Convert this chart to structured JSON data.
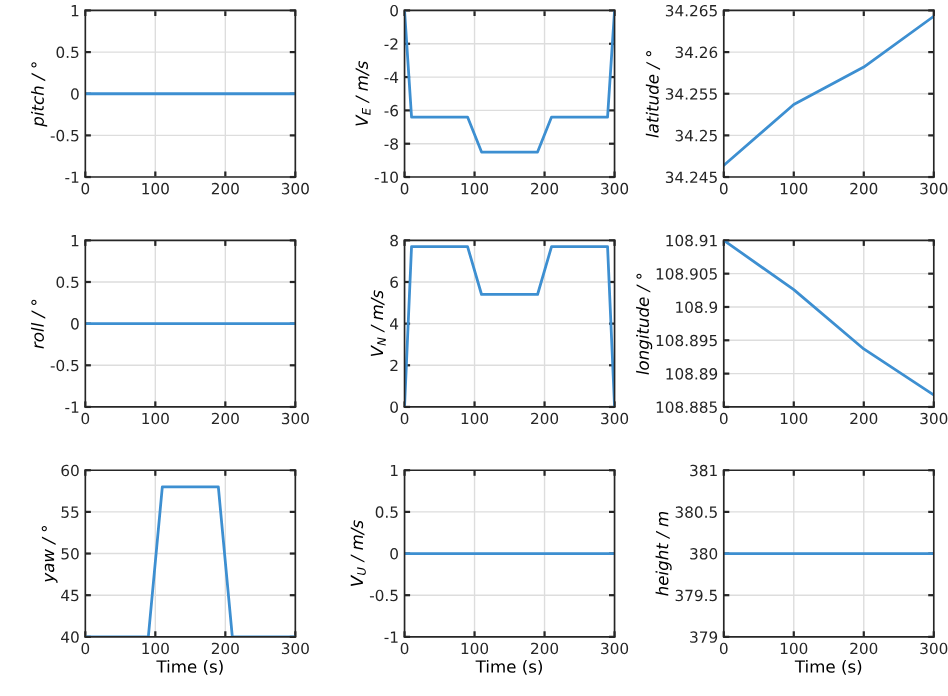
{
  "chart_data": [
    {
      "type": "line",
      "ylabel": "pitch / °",
      "x": [
        0,
        300
      ],
      "series": [
        {
          "color": "#3d8fd1",
          "values": [
            0,
            0
          ]
        }
      ],
      "xlim": [
        0,
        300
      ],
      "xticks": [
        0,
        100,
        200,
        300
      ],
      "ylim": [
        -1,
        1
      ],
      "yticks": [
        -1,
        -0.5,
        0,
        0.5,
        1
      ],
      "grid": true
    },
    {
      "type": "line",
      "ylabel": "V$_{E}$ / m/s",
      "x": [
        0,
        10,
        90,
        110,
        190,
        210,
        290,
        300
      ],
      "series": [
        {
          "color": "#3d8fd1",
          "values": [
            0,
            -6.4,
            -6.4,
            -8.5,
            -8.5,
            -6.4,
            -6.4,
            0
          ]
        }
      ],
      "xlim": [
        0,
        300
      ],
      "xticks": [
        0,
        100,
        200,
        300
      ],
      "ylim": [
        -10,
        0
      ],
      "yticks": [
        -10,
        -8,
        -6,
        -4,
        -2,
        0
      ],
      "grid": true
    },
    {
      "type": "line",
      "ylabel": "latitude / °",
      "x": [
        0,
        100,
        200,
        300
      ],
      "series": [
        {
          "color": "#3d8fd1",
          "values": [
            34.2464,
            34.2537,
            34.2582,
            34.2643
          ]
        }
      ],
      "xlim": [
        0,
        300
      ],
      "xticks": [
        0,
        100,
        200,
        300
      ],
      "ylim": [
        34.245,
        34.265
      ],
      "yticks": [
        34.245,
        34.25,
        34.255,
        34.26,
        34.265
      ],
      "grid": true
    },
    {
      "type": "line",
      "ylabel": "roll / °",
      "x": [
        0,
        300
      ],
      "series": [
        {
          "color": "#3d8fd1",
          "values": [
            0,
            0
          ]
        }
      ],
      "xlim": [
        0,
        300
      ],
      "xticks": [
        0,
        100,
        200,
        300
      ],
      "ylim": [
        -1,
        1
      ],
      "yticks": [
        -1,
        -0.5,
        0,
        0.5,
        1
      ],
      "grid": true
    },
    {
      "type": "line",
      "ylabel": "V$_{N}$ / m/s",
      "x": [
        0,
        10,
        90,
        110,
        190,
        210,
        290,
        300
      ],
      "series": [
        {
          "color": "#3d8fd1",
          "values": [
            0,
            7.7,
            7.7,
            5.4,
            5.4,
            7.7,
            7.7,
            0
          ]
        }
      ],
      "xlim": [
        0,
        300
      ],
      "xticks": [
        0,
        100,
        200,
        300
      ],
      "ylim": [
        0,
        8
      ],
      "yticks": [
        0,
        2,
        4,
        6,
        8
      ],
      "grid": true
    },
    {
      "type": "line",
      "ylabel": "longitude / °",
      "x": [
        0,
        100,
        200,
        300
      ],
      "series": [
        {
          "color": "#3d8fd1",
          "values": [
            108.91,
            108.9026,
            108.8937,
            108.8868
          ]
        }
      ],
      "xlim": [
        0,
        300
      ],
      "xticks": [
        0,
        100,
        200,
        300
      ],
      "ylim": [
        108.885,
        108.91
      ],
      "yticks": [
        108.885,
        108.89,
        108.895,
        108.9,
        108.905,
        108.91
      ],
      "grid": true
    },
    {
      "type": "line",
      "ylabel": "yaw / °",
      "xlabel": "Time (s)",
      "x": [
        0,
        90,
        110,
        190,
        210,
        300
      ],
      "series": [
        {
          "color": "#3d8fd1",
          "values": [
            40,
            40,
            58,
            58,
            40,
            40
          ]
        }
      ],
      "xlim": [
        0,
        300
      ],
      "xticks": [
        0,
        100,
        200,
        300
      ],
      "ylim": [
        40,
        60
      ],
      "yticks": [
        40,
        45,
        50,
        55,
        60
      ],
      "grid": true
    },
    {
      "type": "line",
      "ylabel": "V$_{U}$ / m/s",
      "xlabel": "Time (s)",
      "x": [
        0,
        300
      ],
      "series": [
        {
          "color": "#3d8fd1",
          "values": [
            0,
            0
          ]
        }
      ],
      "xlim": [
        0,
        300
      ],
      "xticks": [
        0,
        100,
        200,
        300
      ],
      "ylim": [
        -1,
        1
      ],
      "yticks": [
        -1,
        -0.5,
        0,
        0.5,
        1
      ],
      "grid": true
    },
    {
      "type": "line",
      "ylabel": "height / m",
      "xlabel": "Time (s)",
      "x": [
        0,
        300
      ],
      "series": [
        {
          "color": "#3d8fd1",
          "values": [
            380,
            380
          ]
        }
      ],
      "xlim": [
        0,
        300
      ],
      "xticks": [
        0,
        100,
        200,
        300
      ],
      "ylim": [
        379,
        381
      ],
      "yticks": [
        379,
        379.5,
        380,
        380.5,
        381
      ],
      "grid": true
    }
  ]
}
